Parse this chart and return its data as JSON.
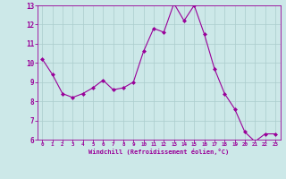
{
  "x": [
    0,
    1,
    2,
    3,
    4,
    5,
    6,
    7,
    8,
    9,
    10,
    11,
    12,
    13,
    14,
    15,
    16,
    17,
    18,
    19,
    20,
    21,
    22,
    23
  ],
  "y": [
    10.2,
    9.4,
    8.4,
    8.2,
    8.4,
    8.7,
    9.1,
    8.6,
    8.7,
    9.0,
    10.6,
    11.8,
    11.6,
    13.1,
    12.2,
    13.0,
    11.5,
    9.7,
    8.4,
    7.6,
    6.4,
    5.9,
    6.3,
    6.3
  ],
  "line_color": "#990099",
  "marker_color": "#990099",
  "bg_color": "#cce8e8",
  "grid_color": "#aacccc",
  "xlabel": "Windchill (Refroidissement éolien,°C)",
  "xlabel_color": "#990099",
  "tick_color": "#990099",
  "ylim": [
    6,
    13
  ],
  "xlim": [
    -0.5,
    23.5
  ],
  "yticks": [
    6,
    7,
    8,
    9,
    10,
    11,
    12,
    13
  ],
  "xticks": [
    0,
    1,
    2,
    3,
    4,
    5,
    6,
    7,
    8,
    9,
    10,
    11,
    12,
    13,
    14,
    15,
    16,
    17,
    18,
    19,
    20,
    21,
    22,
    23
  ]
}
